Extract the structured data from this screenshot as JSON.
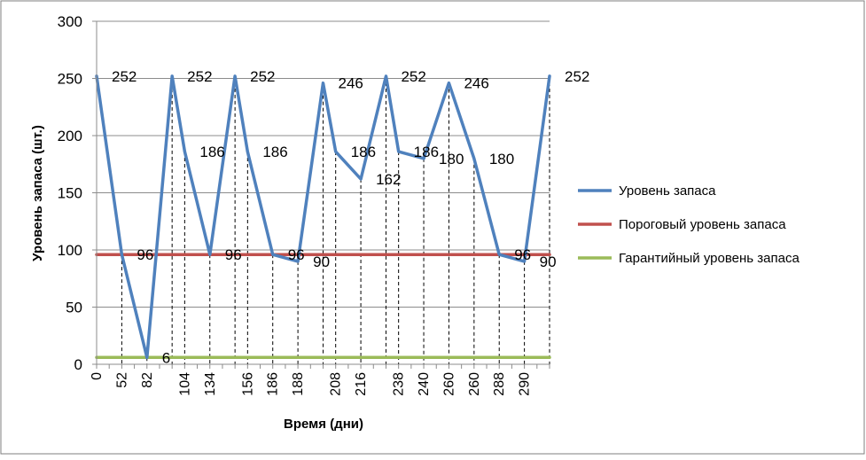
{
  "chart_data": {
    "type": "line",
    "title": "",
    "xlabel": "Время (дни)",
    "ylabel": "Уровень запаса (шт.)",
    "ylim": [
      0,
      300
    ],
    "yticks": [
      0,
      50,
      100,
      150,
      200,
      250,
      300
    ],
    "x_tick_labels": [
      "0",
      "",
      "52",
      "",
      "82",
      "",
      "",
      "104",
      "",
      "134",
      "",
      "",
      "156",
      "",
      "186",
      "",
      "188",
      "",
      "",
      "208",
      "",
      "216",
      "",
      "",
      "238",
      "",
      "240",
      "",
      "260",
      "",
      "260",
      "",
      "288",
      "",
      "290",
      "",
      ""
    ],
    "grid": "horizontal gridlines; dashed vertical drop lines",
    "legend_position": "right",
    "series": [
      {
        "name": "Уровень запаса",
        "color": "#4f81bd",
        "values": [
          252,
          null,
          96,
          null,
          6,
          null,
          252,
          186,
          null,
          96,
          null,
          252,
          186,
          null,
          96,
          null,
          90,
          null,
          246,
          186,
          null,
          162,
          null,
          252,
          186,
          null,
          180,
          null,
          246,
          null,
          180,
          null,
          96,
          null,
          90,
          null,
          252
        ]
      },
      {
        "name": "Пороговый уровень запаса",
        "color": "#c0504d",
        "values": [
          96,
          96,
          96,
          96,
          96,
          96,
          96,
          96,
          96,
          96,
          96,
          96,
          96,
          96,
          96,
          96,
          96,
          96,
          96,
          96,
          96,
          96,
          96,
          96,
          96,
          96,
          96,
          96,
          96,
          96,
          96,
          96,
          96,
          96,
          96,
          96,
          96
        ]
      },
      {
        "name": "Гарантийный уровень запаса",
        "color": "#9bbb59",
        "values": [
          6,
          6,
          6,
          6,
          6,
          6,
          6,
          6,
          6,
          6,
          6,
          6,
          6,
          6,
          6,
          6,
          6,
          6,
          6,
          6,
          6,
          6,
          6,
          6,
          6,
          6,
          6,
          6,
          6,
          6,
          6,
          6,
          6,
          6,
          6,
          6,
          6
        ]
      }
    ],
    "data_labels": [
      {
        "index": 0,
        "text": "252"
      },
      {
        "index": 2,
        "text": "96"
      },
      {
        "index": 4,
        "text": "6"
      },
      {
        "index": 6,
        "text": "252"
      },
      {
        "index": 7,
        "text": "186"
      },
      {
        "index": 9,
        "text": "96"
      },
      {
        "index": 11,
        "text": "252"
      },
      {
        "index": 12,
        "text": "186"
      },
      {
        "index": 14,
        "text": "96"
      },
      {
        "index": 16,
        "text": "90"
      },
      {
        "index": 18,
        "text": "246"
      },
      {
        "index": 19,
        "text": "186"
      },
      {
        "index": 21,
        "text": "162"
      },
      {
        "index": 23,
        "text": "252"
      },
      {
        "index": 24,
        "text": "186"
      },
      {
        "index": 26,
        "text": "180"
      },
      {
        "index": 28,
        "text": "246"
      },
      {
        "index": 30,
        "text": "180"
      },
      {
        "index": 32,
        "text": "96"
      },
      {
        "index": 34,
        "text": "90"
      },
      {
        "index": 36,
        "text": "252"
      }
    ]
  }
}
